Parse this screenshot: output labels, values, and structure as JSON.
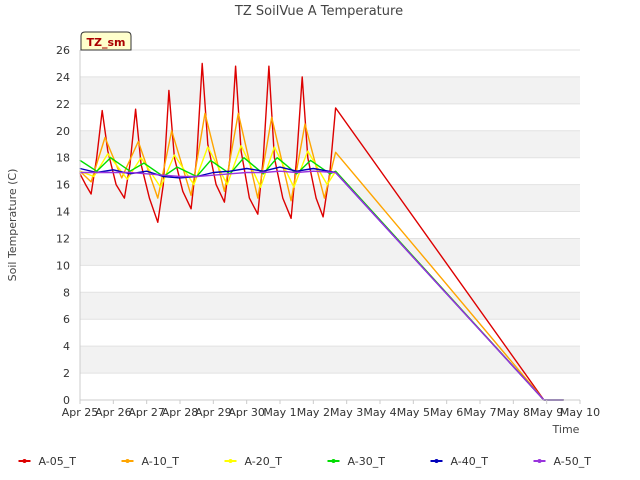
{
  "chart_data": {
    "type": "line",
    "title": "TZ SoilVue A Temperature",
    "xlabel": "Time",
    "ylabel": "Soil Temperature (C)",
    "ylim": [
      0,
      26
    ],
    "yticks": [
      0,
      2,
      4,
      6,
      8,
      10,
      12,
      14,
      16,
      18,
      20,
      22,
      24,
      26
    ],
    "xlim": [
      "2024-04-25",
      "2024-05-10"
    ],
    "xtick_labels": [
      "Apr 25",
      "Apr 26",
      "Apr 27",
      "Apr 28",
      "Apr 29",
      "Apr 30",
      "May 1",
      "May 2",
      "May 3",
      "May 4",
      "May 5",
      "May 6",
      "May 7",
      "May 8",
      "May 9",
      "May 10"
    ],
    "grid": "horizontal alternating bands",
    "legend_position": "bottom",
    "site_label": "TZ_sm",
    "series": [
      {
        "name": "A-05_T",
        "color": "#dd0000",
        "points": [
          [
            "2024-04-25 00:00",
            16.8
          ],
          [
            "2024-04-25 04:00",
            16.0
          ],
          [
            "2024-04-25 08:00",
            15.3
          ],
          [
            "2024-04-25 12:00",
            18.0
          ],
          [
            "2024-04-25 16:00",
            21.5
          ],
          [
            "2024-04-25 20:00",
            18.5
          ],
          [
            "2024-04-26 02:00",
            16.0
          ],
          [
            "2024-04-26 08:00",
            15.0
          ],
          [
            "2024-04-26 12:00",
            17.5
          ],
          [
            "2024-04-26 16:00",
            21.6
          ],
          [
            "2024-04-26 20:00",
            17.5
          ],
          [
            "2024-04-27 02:00",
            15.0
          ],
          [
            "2024-04-27 08:00",
            13.2
          ],
          [
            "2024-04-27 12:00",
            16.0
          ],
          [
            "2024-04-27 16:00",
            23.0
          ],
          [
            "2024-04-27 20:00",
            18.0
          ],
          [
            "2024-04-28 02:00",
            15.5
          ],
          [
            "2024-04-28 08:00",
            14.2
          ],
          [
            "2024-04-28 12:00",
            18.0
          ],
          [
            "2024-04-28 16:00",
            25.0
          ],
          [
            "2024-04-28 20:00",
            19.0
          ],
          [
            "2024-04-29 02:00",
            16.0
          ],
          [
            "2024-04-29 08:00",
            14.7
          ],
          [
            "2024-04-29 12:00",
            18.0
          ],
          [
            "2024-04-29 16:00",
            24.8
          ],
          [
            "2024-04-29 20:00",
            18.5
          ],
          [
            "2024-04-30 02:00",
            15.0
          ],
          [
            "2024-04-30 08:00",
            13.8
          ],
          [
            "2024-04-30 12:00",
            18.0
          ],
          [
            "2024-04-30 16:00",
            24.8
          ],
          [
            "2024-04-30 20:00",
            18.0
          ],
          [
            "2024-05-01 02:00",
            15.0
          ],
          [
            "2024-05-01 08:00",
            13.5
          ],
          [
            "2024-05-01 12:00",
            18.0
          ],
          [
            "2024-05-01 16:00",
            24.0
          ],
          [
            "2024-05-01 20:00",
            18.0
          ],
          [
            "2024-05-02 02:00",
            15.0
          ],
          [
            "2024-05-02 07:00",
            13.6
          ],
          [
            "2024-05-02 12:00",
            17.0
          ],
          [
            "2024-05-02 16:00",
            21.7
          ],
          [
            "2024-05-08 22:00",
            0.0
          ],
          [
            "2024-05-09 12:00",
            0.0
          ]
        ]
      },
      {
        "name": "A-10_T",
        "color": "#ffa500",
        "points": [
          [
            "2024-04-25 00:00",
            17.0
          ],
          [
            "2024-04-25 08:00",
            16.2
          ],
          [
            "2024-04-25 18:00",
            19.5
          ],
          [
            "2024-04-26 06:00",
            16.5
          ],
          [
            "2024-04-26 18:00",
            19.2
          ],
          [
            "2024-04-27 08:00",
            15.0
          ],
          [
            "2024-04-27 18:00",
            20.0
          ],
          [
            "2024-04-28 08:00",
            15.2
          ],
          [
            "2024-04-28 18:00",
            21.3
          ],
          [
            "2024-04-29 08:00",
            15.5
          ],
          [
            "2024-04-29 18:00",
            21.3
          ],
          [
            "2024-04-30 08:00",
            15.0
          ],
          [
            "2024-04-30 18:00",
            21.0
          ],
          [
            "2024-05-01 08:00",
            14.8
          ],
          [
            "2024-05-01 18:00",
            20.5
          ],
          [
            "2024-05-02 08:00",
            15.0
          ],
          [
            "2024-05-02 16:00",
            18.4
          ],
          [
            "2024-05-08 22:00",
            0.0
          ],
          [
            "2024-05-09 12:00",
            0.0
          ]
        ]
      },
      {
        "name": "A-20_T",
        "color": "#ffff00",
        "points": [
          [
            "2024-04-25 00:00",
            17.0
          ],
          [
            "2024-04-25 10:00",
            16.6
          ],
          [
            "2024-04-25 20:00",
            18.3
          ],
          [
            "2024-04-26 10:00",
            16.4
          ],
          [
            "2024-04-26 20:00",
            18.0
          ],
          [
            "2024-04-27 10:00",
            15.8
          ],
          [
            "2024-04-27 20:00",
            18.2
          ],
          [
            "2024-04-28 10:00",
            16.0
          ],
          [
            "2024-04-28 20:00",
            18.8
          ],
          [
            "2024-04-29 10:00",
            16.0
          ],
          [
            "2024-04-29 20:00",
            18.9
          ],
          [
            "2024-04-30 10:00",
            15.8
          ],
          [
            "2024-04-30 20:00",
            18.8
          ],
          [
            "2024-05-01 10:00",
            15.8
          ],
          [
            "2024-05-01 20:00",
            18.5
          ],
          [
            "2024-05-02 10:00",
            16.0
          ],
          [
            "2024-05-02 16:00",
            17.0
          ],
          [
            "2024-05-08 22:00",
            0.0
          ],
          [
            "2024-05-09 12:00",
            0.0
          ]
        ]
      },
      {
        "name": "A-30_T",
        "color": "#00dd00",
        "points": [
          [
            "2024-04-25 00:00",
            17.8
          ],
          [
            "2024-04-25 12:00",
            17.0
          ],
          [
            "2024-04-25 22:00",
            18.0
          ],
          [
            "2024-04-26 12:00",
            17.0
          ],
          [
            "2024-04-26 22:00",
            17.6
          ],
          [
            "2024-04-27 12:00",
            16.6
          ],
          [
            "2024-04-27 22:00",
            17.3
          ],
          [
            "2024-04-28 12:00",
            16.6
          ],
          [
            "2024-04-28 22:00",
            17.8
          ],
          [
            "2024-04-29 12:00",
            16.8
          ],
          [
            "2024-04-29 22:00",
            18.0
          ],
          [
            "2024-04-30 12:00",
            16.8
          ],
          [
            "2024-04-30 22:00",
            18.0
          ],
          [
            "2024-05-01 12:00",
            16.8
          ],
          [
            "2024-05-01 22:00",
            17.8
          ],
          [
            "2024-05-02 12:00",
            16.8
          ],
          [
            "2024-05-02 16:00",
            17.0
          ],
          [
            "2024-05-08 22:00",
            0.0
          ],
          [
            "2024-05-09 12:00",
            0.0
          ]
        ]
      },
      {
        "name": "A-40_T",
        "color": "#0000bb",
        "points": [
          [
            "2024-04-25 00:00",
            17.2
          ],
          [
            "2024-04-25 12:00",
            16.9
          ],
          [
            "2024-04-26 00:00",
            17.1
          ],
          [
            "2024-04-26 12:00",
            16.8
          ],
          [
            "2024-04-27 00:00",
            17.0
          ],
          [
            "2024-04-27 12:00",
            16.6
          ],
          [
            "2024-04-28 00:00",
            16.5
          ],
          [
            "2024-04-28 12:00",
            16.6
          ],
          [
            "2024-04-29 00:00",
            16.9
          ],
          [
            "2024-04-29 12:00",
            17.0
          ],
          [
            "2024-04-30 00:00",
            17.2
          ],
          [
            "2024-04-30 12:00",
            17.0
          ],
          [
            "2024-05-01 00:00",
            17.3
          ],
          [
            "2024-05-01 12:00",
            17.0
          ],
          [
            "2024-05-02 00:00",
            17.2
          ],
          [
            "2024-05-02 16:00",
            16.9
          ],
          [
            "2024-05-08 22:00",
            0.0
          ],
          [
            "2024-05-09 12:00",
            0.0
          ]
        ]
      },
      {
        "name": "A-50_T",
        "color": "#9933dd",
        "points": [
          [
            "2024-04-25 00:00",
            16.9
          ],
          [
            "2024-04-25 12:00",
            16.9
          ],
          [
            "2024-04-26 00:00",
            16.9
          ],
          [
            "2024-04-26 12:00",
            16.9
          ],
          [
            "2024-04-27 00:00",
            16.8
          ],
          [
            "2024-04-27 12:00",
            16.7
          ],
          [
            "2024-04-28 00:00",
            16.6
          ],
          [
            "2024-04-28 12:00",
            16.6
          ],
          [
            "2024-04-29 00:00",
            16.7
          ],
          [
            "2024-04-29 12:00",
            16.8
          ],
          [
            "2024-04-30 00:00",
            16.9
          ],
          [
            "2024-04-30 12:00",
            16.9
          ],
          [
            "2024-05-01 00:00",
            17.0
          ],
          [
            "2024-05-01 12:00",
            16.9
          ],
          [
            "2024-05-02 00:00",
            17.0
          ],
          [
            "2024-05-02 16:00",
            16.9
          ],
          [
            "2024-05-08 22:00",
            0.0
          ],
          [
            "2024-05-09 12:00",
            0.0
          ]
        ]
      }
    ]
  }
}
